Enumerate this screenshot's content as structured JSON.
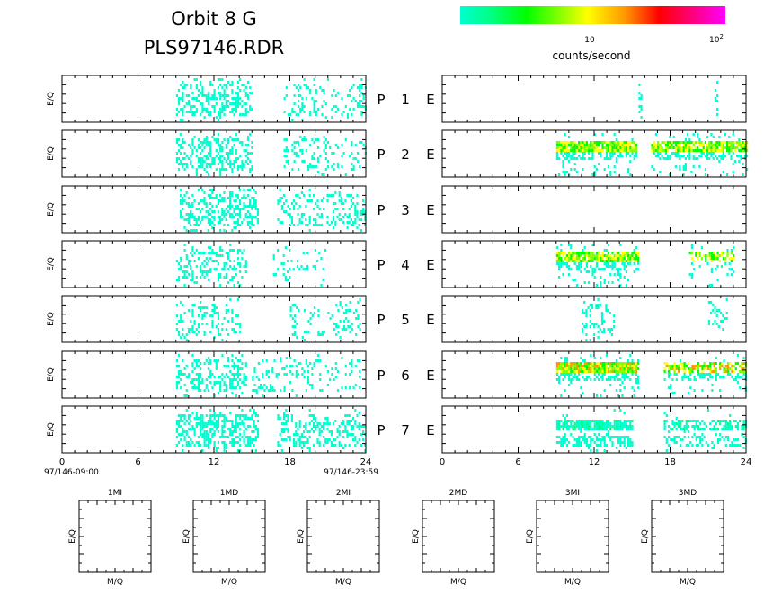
{
  "header": {
    "title_line1": "Orbit 8 G",
    "title_line2": "PLS97146.RDR"
  },
  "colorbar": {
    "label": "counts/second",
    "tick_mid": "10",
    "tick_max": "10",
    "tick_max_exp": "2",
    "colors": [
      "#00ffd0",
      "#00ff80",
      "#00ff00",
      "#80ff00",
      "#ffff00",
      "#ff9900",
      "#ff0000",
      "#ff0080",
      "#ff00ff"
    ]
  },
  "panels": {
    "row_labels": [
      "P",
      "P",
      "P",
      "P",
      "P",
      "P",
      "P"
    ],
    "row_numbers": [
      "1",
      "2",
      "3",
      "4",
      "5",
      "6",
      "7"
    ],
    "row_suffix": "E",
    "ylabel": "E/Q"
  },
  "time_axis": {
    "ticks": [
      "0",
      "6",
      "12",
      "18",
      "24"
    ],
    "start_label": "97/146-09:00",
    "end_label": "97/146-23:59"
  },
  "small_panels": {
    "titles": [
      "1MI",
      "1MD",
      "2MI",
      "2MD",
      "3MI",
      "3MD"
    ],
    "xlabel": "M/Q",
    "ylabel": "E/Q"
  },
  "chart_data": [
    {
      "type": "heatmap",
      "name": "left-column",
      "x_range": [
        0,
        24
      ],
      "x_ticks": [
        0,
        6,
        12,
        18,
        24
      ],
      "rows": [
        {
          "row": "1",
          "level": 0,
          "segments": [
            [
              9,
              15
            ],
            [
              17.5,
              24
            ]
          ],
          "density": [
            0.42,
            0.2
          ]
        },
        {
          "row": "2",
          "level": 0,
          "segments": [
            [
              9,
              15
            ],
            [
              17.5,
              24
            ]
          ],
          "density": [
            0.4,
            0.18
          ]
        },
        {
          "row": "3",
          "level": 0,
          "segments": [
            [
              9.3,
              15.5
            ],
            [
              17,
              24
            ]
          ],
          "density": [
            0.45,
            0.25
          ]
        },
        {
          "row": "4",
          "level": 0,
          "segments": [
            [
              9,
              14.5
            ],
            [
              16.5,
              21
            ]
          ],
          "density": [
            0.3,
            0.1
          ]
        },
        {
          "row": "5",
          "level": 0,
          "segments": [
            [
              9,
              14
            ],
            [
              18,
              23.5
            ]
          ],
          "density": [
            0.25,
            0.18
          ]
        },
        {
          "row": "6",
          "level": 0,
          "segments": [
            [
              9,
              14.5
            ],
            [
              15,
              17.5
            ],
            [
              17.5,
              23.5
            ]
          ],
          "density": [
            0.35,
            0.2,
            0.18
          ]
        },
        {
          "row": "7",
          "level": 0,
          "segments": [
            [
              9,
              15.5
            ],
            [
              17,
              24
            ]
          ],
          "density": [
            0.55,
            0.3
          ]
        }
      ]
    },
    {
      "type": "heatmap",
      "name": "right-column",
      "x_range": [
        0,
        24
      ],
      "x_ticks": [
        0,
        6,
        12,
        18,
        24
      ],
      "rows": [
        {
          "row": "1",
          "level": 0,
          "segments": [
            [
              15.5,
              15.7
            ],
            [
              21.5,
              21.7
            ]
          ],
          "density": [
            0.3,
            0.3
          ]
        },
        {
          "row": "2",
          "level": 2,
          "segments": [
            [
              9,
              15.3
            ],
            [
              16.5,
              24
            ]
          ],
          "density": [
            0.95,
            0.85
          ]
        },
        {
          "row": "3",
          "level": 0,
          "segments": [],
          "density": []
        },
        {
          "row": "4",
          "level": 2,
          "segments": [
            [
              9,
              15.5
            ],
            [
              19.5,
              23
            ]
          ],
          "density": [
            0.85,
            0.5
          ]
        },
        {
          "row": "5",
          "level": 0,
          "segments": [
            [
              11,
              13.5
            ],
            [
              21,
              22.5
            ]
          ],
          "density": [
            0.25,
            0.2
          ]
        },
        {
          "row": "6",
          "level": 3,
          "segments": [
            [
              9,
              15.5
            ],
            [
              17.5,
              24
            ]
          ],
          "density": [
            0.95,
            0.6
          ]
        },
        {
          "row": "7",
          "level": 1,
          "segments": [
            [
              9,
              15
            ],
            [
              17.5,
              24
            ]
          ],
          "density": [
            0.85,
            0.55
          ]
        }
      ]
    }
  ]
}
